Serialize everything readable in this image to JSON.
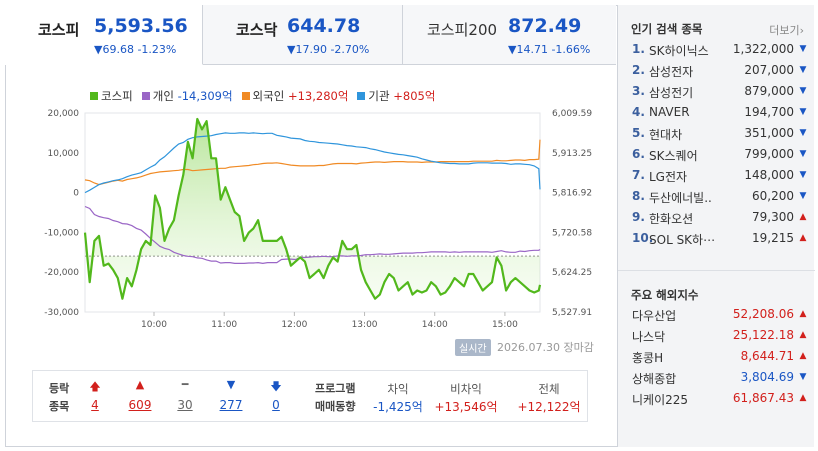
{
  "tabs": [
    {
      "name": "코스피",
      "value": "5,593.56",
      "change": "▼69.68 -1.23%"
    },
    {
      "name": "코스닥",
      "value": "644.78",
      "change": "▼17.90 -2.70%"
    },
    {
      "name": "코스피200",
      "value": "872.49",
      "change": "▼14.71 -1.66%"
    }
  ],
  "legend": {
    "kospi": "코스피",
    "individual_label": "개인",
    "individual_value": "-14,309억",
    "foreign_label": "외국인",
    "foreign_value": "+13,280억",
    "institution_label": "기관",
    "institution_value": "+805억"
  },
  "colors": {
    "kospi": "#52b81c",
    "individual": "#9a66c6",
    "foreign": "#f08a24",
    "institution": "#2f95dc",
    "up": "#d2201c",
    "down": "#1a56c4"
  },
  "chart_data": {
    "type": "line",
    "x_ticks": [
      "10:00",
      "11:00",
      "12:00",
      "13:00",
      "14:00",
      "15:00"
    ],
    "left_ticks": [
      "20,000",
      "10,000",
      "0",
      "-10,000",
      "-20,000",
      "-30,000"
    ],
    "right_ticks": [
      "6,009.59",
      "5,913.25",
      "5,816.92",
      "5,720.58",
      "5,624.25",
      "5,527.91"
    ],
    "left_ylim": [
      -30000,
      20000
    ],
    "right_ylim": [
      5527.91,
      6009.59
    ],
    "reference_value": 5663.24,
    "x": [
      "09:01",
      "09:05",
      "09:09",
      "09:13",
      "09:17",
      "09:21",
      "09:25",
      "09:29",
      "09:33",
      "09:37",
      "09:41",
      "09:45",
      "09:49",
      "09:53",
      "09:57",
      "10:01",
      "10:05",
      "10:09",
      "10:13",
      "10:17",
      "10:21",
      "10:25",
      "10:29",
      "10:33",
      "10:37",
      "10:41",
      "10:45",
      "10:49",
      "10:53",
      "10:57",
      "11:01",
      "11:05",
      "11:09",
      "11:13",
      "11:17",
      "11:21",
      "11:25",
      "11:29",
      "11:33",
      "11:37",
      "11:41",
      "11:45",
      "11:49",
      "11:53",
      "11:57",
      "12:01",
      "12:05",
      "12:09",
      "12:13",
      "12:17",
      "12:21",
      "12:25",
      "12:29",
      "12:33",
      "12:37",
      "12:41",
      "12:45",
      "12:49",
      "12:53",
      "12:57",
      "13:01",
      "13:05",
      "13:09",
      "13:13",
      "13:17",
      "13:21",
      "13:25",
      "13:29",
      "13:33",
      "13:37",
      "13:41",
      "13:45",
      "13:49",
      "13:53",
      "13:57",
      "14:01",
      "14:05",
      "14:09",
      "14:13",
      "14:17",
      "14:21",
      "14:25",
      "14:29",
      "14:33",
      "14:37",
      "14:41",
      "14:45",
      "14:49",
      "14:53",
      "14:57",
      "15:01",
      "15:05",
      "15:09",
      "15:13",
      "15:17",
      "15:21",
      "15:25",
      "15:29",
      "15:30"
    ],
    "series": [
      {
        "name": "코스피",
        "axis": "right",
        "values": [
          5720,
          5600,
          5700,
          5712,
          5640,
          5645,
          5630,
          5610,
          5560,
          5610,
          5590,
          5630,
          5680,
          5700,
          5690,
          5810,
          5780,
          5700,
          5730,
          5750,
          5810,
          5860,
          5940,
          5900,
          5995,
          5970,
          5990,
          5900,
          5900,
          5800,
          5830,
          5800,
          5770,
          5760,
          5700,
          5720,
          5730,
          5750,
          5700,
          5700,
          5700,
          5700,
          5710,
          5680,
          5640,
          5650,
          5660,
          5650,
          5610,
          5620,
          5630,
          5610,
          5640,
          5660,
          5650,
          5700,
          5680,
          5680,
          5690,
          5630,
          5600,
          5580,
          5560,
          5570,
          5600,
          5620,
          5610,
          5580,
          5590,
          5600,
          5570,
          5580,
          5575,
          5580,
          5600,
          5590,
          5570,
          5575,
          5590,
          5610,
          5600,
          5590,
          5620,
          5620,
          5600,
          5580,
          5590,
          5600,
          5660,
          5640,
          5580,
          5600,
          5610,
          5600,
          5590,
          5580,
          5575,
          5580,
          5593.56
        ]
      },
      {
        "name": "개인",
        "axis": "left",
        "values": [
          -3500,
          -4000,
          -5500,
          -6000,
          -6300,
          -6500,
          -7000,
          -7300,
          -7800,
          -7900,
          -8300,
          -9000,
          -9400,
          -10400,
          -11500,
          -12500,
          -13500,
          -14000,
          -14300,
          -15000,
          -15400,
          -15800,
          -16000,
          -16100,
          -16400,
          -16500,
          -16900,
          -17200,
          -17200,
          -17700,
          -17600,
          -17600,
          -17800,
          -17800,
          -17800,
          -17700,
          -17700,
          -17600,
          -17800,
          -17600,
          -17600,
          -17600,
          -16800,
          -16700,
          -16700,
          -16800,
          -16300,
          -16300,
          -16200,
          -16100,
          -16100,
          -16000,
          -16100,
          -16100,
          -15900,
          -15900,
          -16000,
          -15900,
          -15900,
          -15800,
          -15600,
          -15600,
          -15500,
          -15400,
          -15500,
          -15500,
          -15400,
          -15300,
          -15200,
          -15200,
          -15200,
          -15100,
          -15100,
          -15000,
          -14900,
          -14900,
          -14900,
          -14900,
          -15000,
          -14900,
          -15000,
          -14900,
          -14900,
          -14900,
          -14900,
          -14900,
          -14900,
          -15000,
          -14800,
          -14600,
          -14900,
          -15000,
          -15000,
          -14700,
          -14800,
          -14600,
          -14500,
          -14500,
          -14309
        ]
      },
      {
        "name": "외국인",
        "axis": "left",
        "values": [
          3200,
          3000,
          2400,
          2000,
          2300,
          2600,
          2900,
          3100,
          2900,
          3300,
          3500,
          3700,
          4000,
          4400,
          4800,
          5000,
          5200,
          5300,
          5400,
          5500,
          5600,
          5800,
          5800,
          5500,
          5600,
          5700,
          5800,
          5900,
          6000,
          6100,
          6100,
          6400,
          6500,
          6600,
          6700,
          6800,
          7000,
          7100,
          7300,
          7400,
          7400,
          7500,
          7300,
          7100,
          6900,
          6800,
          6700,
          6700,
          6700,
          6700,
          6800,
          6800,
          7000,
          7200,
          7300,
          7300,
          7300,
          7300,
          7200,
          7400,
          7500,
          7600,
          7700,
          7700,
          7600,
          7700,
          7800,
          7800,
          7800,
          7700,
          7700,
          7700,
          7600,
          7700,
          7700,
          7700,
          7800,
          7800,
          7800,
          7800,
          7800,
          7800,
          7800,
          7900,
          7900,
          7900,
          7900,
          7900,
          8100,
          8000,
          8000,
          8100,
          8200,
          8200,
          8100,
          8300,
          8300,
          8400,
          13280
        ]
      },
      {
        "name": "기관",
        "axis": "left",
        "values": [
          0,
          600,
          1300,
          2000,
          2400,
          2700,
          3000,
          3200,
          3500,
          4000,
          4400,
          4700,
          5000,
          5700,
          6400,
          7000,
          8200,
          9000,
          10100,
          11200,
          12200,
          12600,
          13400,
          13800,
          14000,
          14100,
          14200,
          14300,
          14600,
          14800,
          15000,
          14900,
          14900,
          15000,
          15000,
          14900,
          15000,
          14900,
          14800,
          14900,
          14900,
          14400,
          14200,
          14000,
          13700,
          13600,
          13500,
          13100,
          12900,
          12800,
          12600,
          12500,
          12400,
          12300,
          12200,
          12000,
          11800,
          11700,
          11500,
          11400,
          11300,
          11000,
          10800,
          10500,
          10200,
          10000,
          9800,
          9600,
          9500,
          9300,
          9100,
          8900,
          8500,
          8200,
          7900,
          7700,
          7500,
          7400,
          7300,
          7300,
          7200,
          7200,
          7200,
          7400,
          7500,
          7500,
          7500,
          7400,
          7400,
          7400,
          7300,
          7100,
          7200,
          7200,
          7100,
          7000,
          6700,
          6000,
          805
        ]
      }
    ]
  },
  "badge": "실시간",
  "datestamp": "2026.07.30 장마감",
  "breadth": {
    "row1": "등락",
    "row2": "종목",
    "cols": [
      {
        "icon": "🡅",
        "value": "4",
        "color": "red"
      },
      {
        "icon": "▲",
        "value": "609",
        "color": "red"
      },
      {
        "icon": "━",
        "value": "30",
        "color": "gray"
      },
      {
        "icon": "▼",
        "value": "277",
        "color": "blue"
      },
      {
        "icon": "🡇",
        "value": "0",
        "color": "blue"
      }
    ],
    "program_label1": "프로그램",
    "program_label2": "매매동향",
    "arb_label": "차익",
    "arb_value": "-1,425억",
    "nonarb_label": "비차익",
    "nonarb_value": "+13,546억",
    "total_label": "전체",
    "total_value": "+12,122억"
  },
  "popular": {
    "title": "인기 검색 종목",
    "more": "더보기",
    "items": [
      {
        "rank": "1.",
        "name": "SK하이닉스",
        "price": "1,322,000",
        "dir": "down"
      },
      {
        "rank": "2.",
        "name": "삼성전자",
        "price": "207,000",
        "dir": "down"
      },
      {
        "rank": "3.",
        "name": "삼성전기",
        "price": "879,000",
        "dir": "down"
      },
      {
        "rank": "4.",
        "name": "NAVER",
        "price": "194,700",
        "dir": "down"
      },
      {
        "rank": "5.",
        "name": "현대차",
        "price": "351,000",
        "dir": "down"
      },
      {
        "rank": "6.",
        "name": "SK스퀘어",
        "price": "799,000",
        "dir": "down"
      },
      {
        "rank": "7.",
        "name": "LG전자",
        "price": "148,000",
        "dir": "down"
      },
      {
        "rank": "8.",
        "name": "두산에너빌..",
        "price": "60,200",
        "dir": "down"
      },
      {
        "rank": "9.",
        "name": "한화오션",
        "price": "79,300",
        "dir": "up"
      },
      {
        "rank": "10.",
        "name": "SOL SK하⋯",
        "price": "19,215",
        "dir": "up"
      }
    ]
  },
  "foreign": {
    "title": "주요 해외지수",
    "items": [
      {
        "name": "다우산업",
        "value": "52,208.06",
        "dir": "up"
      },
      {
        "name": "나스닥",
        "value": "25,122.18",
        "dir": "up"
      },
      {
        "name": "홍콩H",
        "value": "8,644.71",
        "dir": "up"
      },
      {
        "name": "상해종합",
        "value": "3,804.69",
        "dir": "down"
      },
      {
        "name": "니케이225",
        "value": "61,867.43",
        "dir": "up"
      }
    ]
  }
}
